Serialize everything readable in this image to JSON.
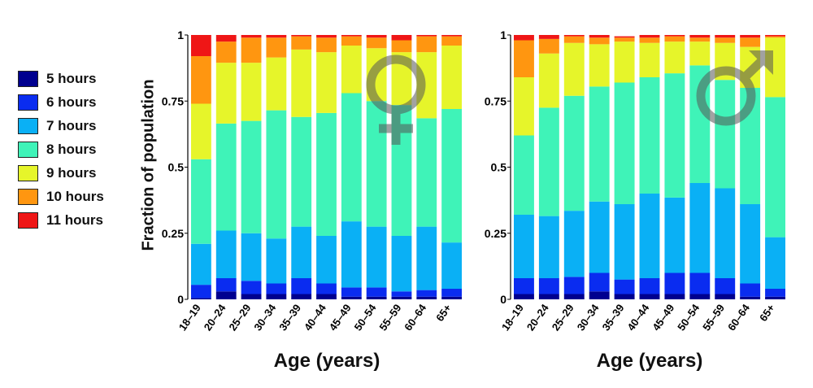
{
  "legend": {
    "items": [
      {
        "label": "5 hours",
        "color": "#00008f"
      },
      {
        "label": "6 hours",
        "color": "#0a2cf0"
      },
      {
        "label": "7 hours",
        "color": "#0ab0f5"
      },
      {
        "label": "8 hours",
        "color": "#3ff3b8"
      },
      {
        "label": "9 hours",
        "color": "#e6f52a"
      },
      {
        "label": "10 hours",
        "color": "#ff9610"
      },
      {
        "label": "11 hours",
        "color": "#ef1616"
      }
    ]
  },
  "ylabel": "Fraction of population",
  "chart_data": [
    {
      "type": "bar",
      "stacked": true,
      "panel": "female",
      "symbol_icon": "female-symbol-icon",
      "xlabel": "Age (years)",
      "ylabel": "Fraction of population",
      "ylim": [
        0,
        1
      ],
      "yticks": [
        "0",
        "0.25",
        "0.5",
        "0.75",
        "1"
      ],
      "categories": [
        "18–19",
        "20–24",
        "25–29",
        "30–34",
        "35–39",
        "40–44",
        "45–49",
        "50–54",
        "55–59",
        "60–64",
        "65+"
      ],
      "series": [
        {
          "name": "5 hours",
          "values": [
            0.005,
            0.03,
            0.02,
            0.02,
            0.02,
            0.02,
            0.01,
            0.01,
            0.01,
            0.01,
            0.01
          ]
        },
        {
          "name": "6 hours",
          "values": [
            0.05,
            0.05,
            0.05,
            0.04,
            0.06,
            0.04,
            0.035,
            0.035,
            0.02,
            0.025,
            0.03
          ]
        },
        {
          "name": "7 hours",
          "values": [
            0.155,
            0.18,
            0.18,
            0.17,
            0.195,
            0.18,
            0.25,
            0.23,
            0.21,
            0.24,
            0.175
          ]
        },
        {
          "name": "8 hours",
          "values": [
            0.32,
            0.405,
            0.425,
            0.485,
            0.415,
            0.465,
            0.485,
            0.475,
            0.495,
            0.41,
            0.505
          ]
        },
        {
          "name": "9 hours",
          "values": [
            0.21,
            0.23,
            0.22,
            0.2,
            0.255,
            0.23,
            0.18,
            0.2,
            0.2,
            0.25,
            0.24
          ]
        },
        {
          "name": "10 hours",
          "values": [
            0.18,
            0.08,
            0.095,
            0.075,
            0.05,
            0.055,
            0.035,
            0.04,
            0.045,
            0.06,
            0.035
          ]
        },
        {
          "name": "11 hours",
          "values": [
            0.08,
            0.025,
            0.01,
            0.01,
            0.005,
            0.01,
            0.005,
            0.01,
            0.02,
            0.005,
            0.005
          ]
        }
      ]
    },
    {
      "type": "bar",
      "stacked": true,
      "panel": "male",
      "symbol_icon": "male-symbol-icon",
      "xlabel": "Age (years)",
      "ylabel": "",
      "ylim": [
        0,
        1
      ],
      "yticks": [
        "0",
        "0.25",
        "0.5",
        "0.75",
        "1"
      ],
      "categories": [
        "18–19",
        "20–24",
        "25–29",
        "30–34",
        "35–39",
        "40–44",
        "45–49",
        "50–54",
        "55–59",
        "60–64",
        "65+"
      ],
      "series": [
        {
          "name": "5 hours",
          "values": [
            0.02,
            0.02,
            0.02,
            0.03,
            0.02,
            0.02,
            0.02,
            0.02,
            0.02,
            0.01,
            0.01
          ]
        },
        {
          "name": "6 hours",
          "values": [
            0.06,
            0.06,
            0.065,
            0.07,
            0.055,
            0.06,
            0.08,
            0.08,
            0.06,
            0.05,
            0.03
          ]
        },
        {
          "name": "7 hours",
          "values": [
            0.24,
            0.235,
            0.25,
            0.27,
            0.285,
            0.32,
            0.285,
            0.34,
            0.34,
            0.3,
            0.195
          ]
        },
        {
          "name": "8 hours",
          "values": [
            0.3,
            0.41,
            0.435,
            0.435,
            0.46,
            0.44,
            0.47,
            0.445,
            0.41,
            0.44,
            0.53
          ]
        },
        {
          "name": "9 hours",
          "values": [
            0.22,
            0.205,
            0.2,
            0.16,
            0.155,
            0.13,
            0.12,
            0.09,
            0.14,
            0.155,
            0.225
          ]
        },
        {
          "name": "10 hours",
          "values": [
            0.14,
            0.055,
            0.025,
            0.025,
            0.015,
            0.02,
            0.02,
            0.015,
            0.02,
            0.035,
            0.005
          ]
        },
        {
          "name": "11 hours",
          "values": [
            0.02,
            0.015,
            0.005,
            0.01,
            0.005,
            0.01,
            0.005,
            0.01,
            0.01,
            0.01,
            0.005
          ]
        }
      ]
    }
  ]
}
